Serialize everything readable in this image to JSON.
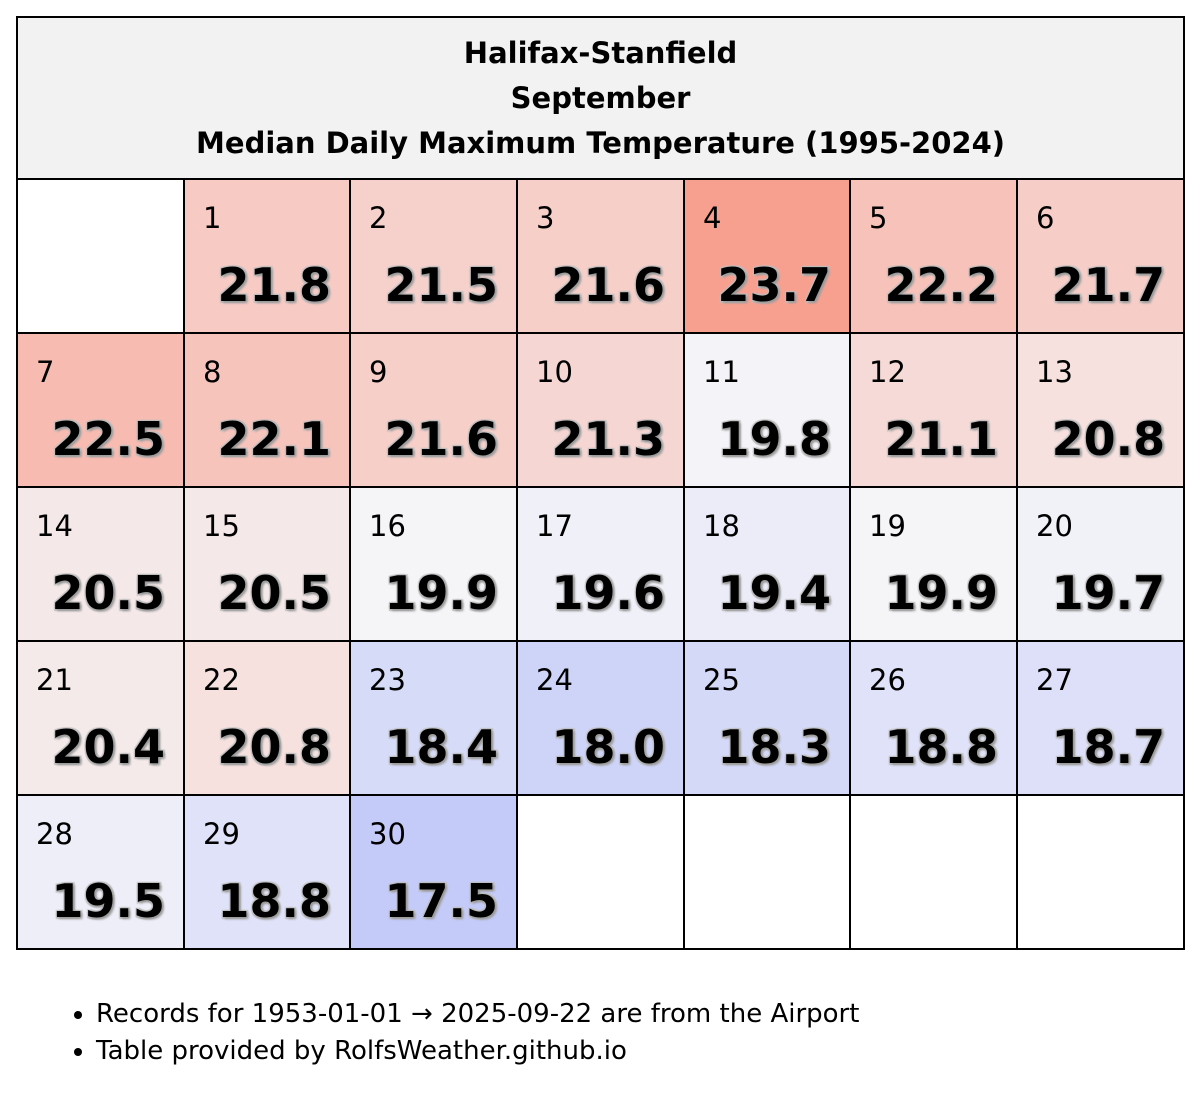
{
  "title": {
    "station": "Halifax-Stanfield",
    "month": "September",
    "subtitle": "Median Daily Maximum Temperature (1995-2024)"
  },
  "colors": {
    "warm": "#f8a090",
    "neutral": "#f5f5f8",
    "cool": "#c4cbf8",
    "empty": "#ffffff",
    "header_bg": "#f2f2f2"
  },
  "chart_data": {
    "type": "table",
    "title": "Halifax-Stanfield September Median Daily Maximum Temperature (1995-2024)",
    "first_weekday_offset": 1,
    "days": [
      1,
      2,
      3,
      4,
      5,
      6,
      7,
      8,
      9,
      10,
      11,
      12,
      13,
      14,
      15,
      16,
      17,
      18,
      19,
      20,
      21,
      22,
      23,
      24,
      25,
      26,
      27,
      28,
      29,
      30
    ],
    "values": [
      "21.8",
      "21.5",
      "21.6",
      "23.7",
      "22.2",
      "21.7",
      "22.5",
      "22.1",
      "21.6",
      "21.3",
      "19.8",
      "21.1",
      "20.8",
      "20.5",
      "20.5",
      "19.9",
      "19.6",
      "19.4",
      "19.9",
      "19.7",
      "20.4",
      "20.8",
      "18.4",
      "18.0",
      "18.3",
      "18.8",
      "18.7",
      "19.5",
      "18.8",
      "17.5"
    ]
  },
  "notes": [
    "Records for 1953-01-01 → 2025-09-22 are from the Airport",
    "Table provided by RolfsWeather.github.io"
  ]
}
